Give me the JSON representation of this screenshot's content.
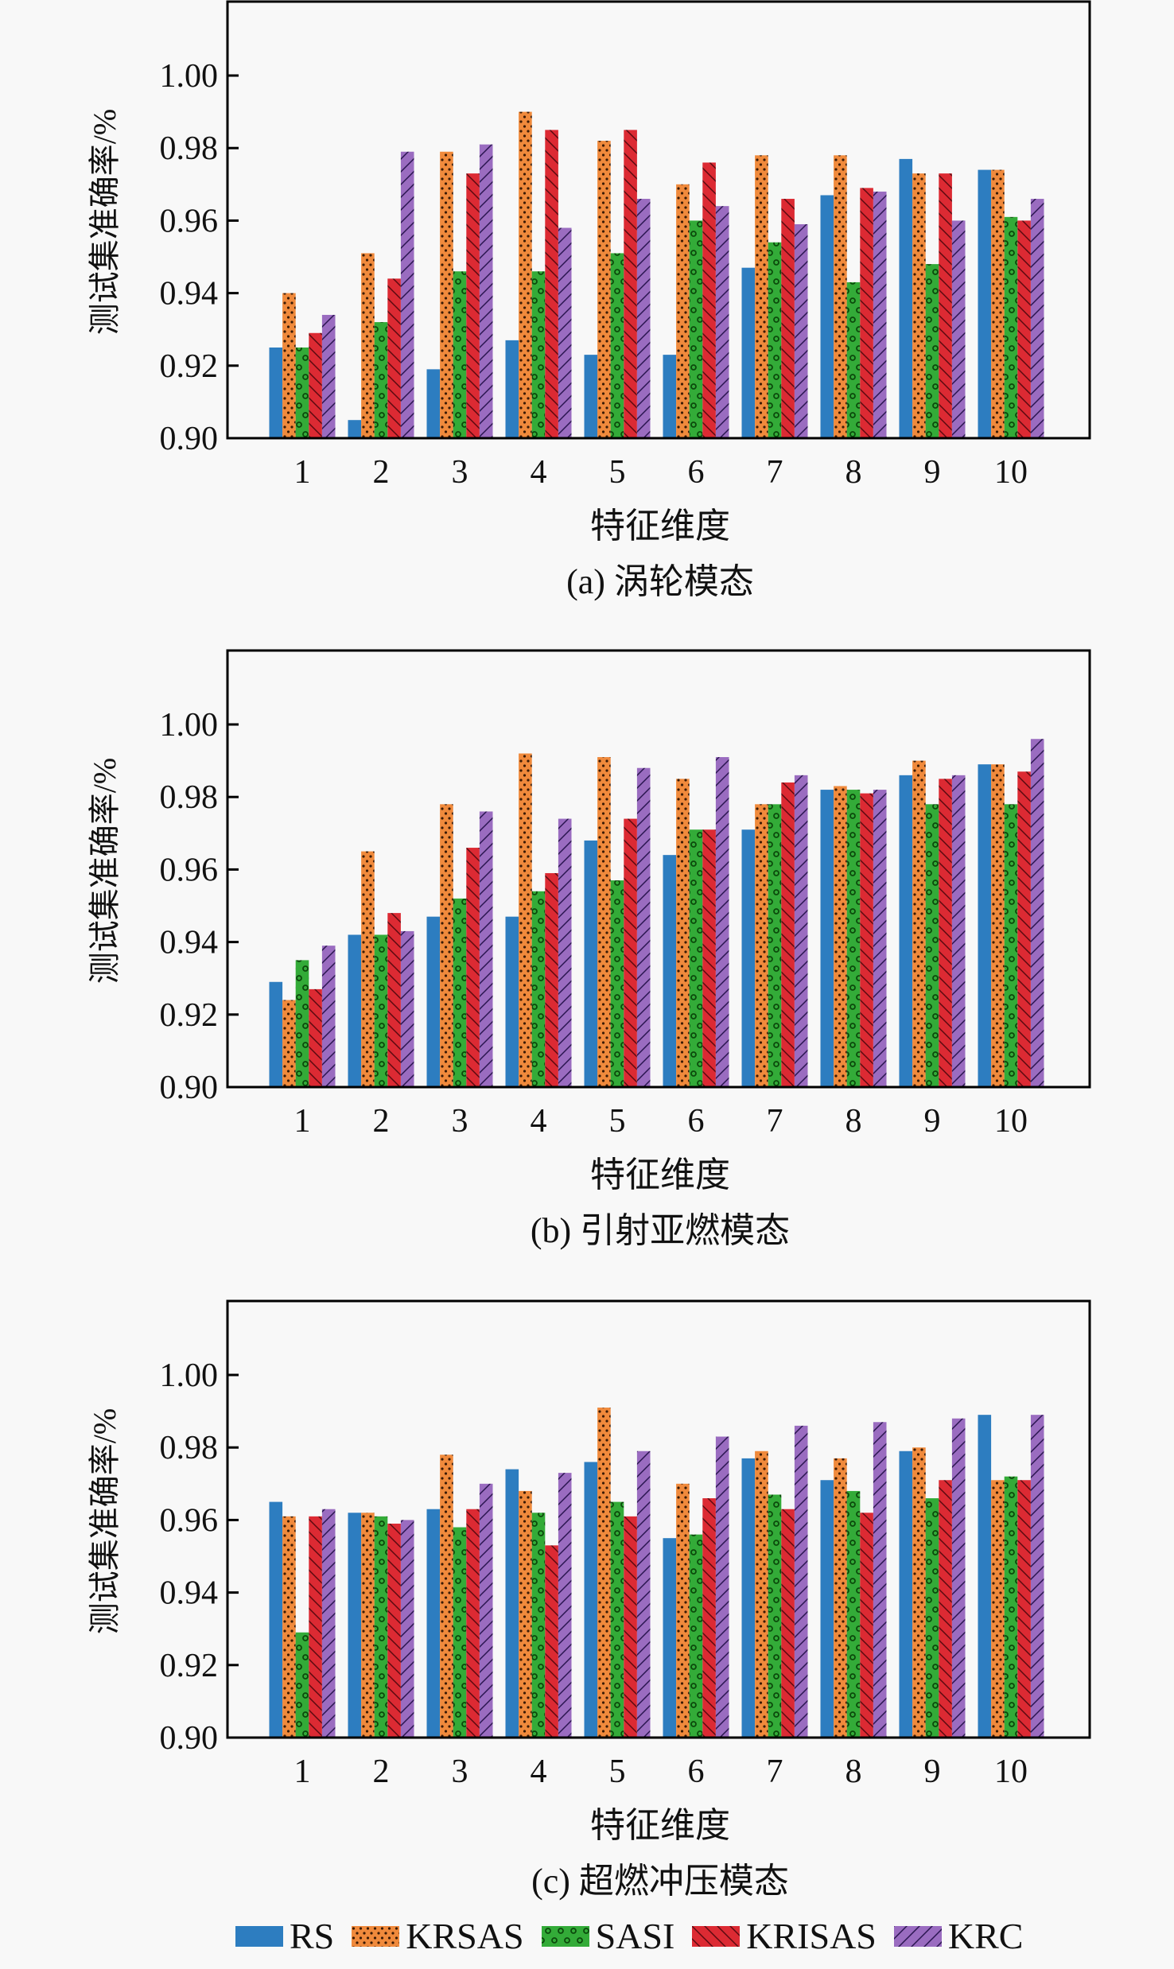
{
  "legend": [
    {
      "name": "RS",
      "color": "#2d7dc0",
      "pattern": "solid"
    },
    {
      "name": "KRSAS",
      "color": "#f08a3c",
      "pattern": "dots"
    },
    {
      "name": "SASI",
      "color": "#33ab38",
      "pattern": "rings"
    },
    {
      "name": "KRISAS",
      "color": "#dc2a33",
      "pattern": "backslash"
    },
    {
      "name": "KRC",
      "color": "#9a6cc0",
      "pattern": "slash"
    }
  ],
  "chart_data": [
    {
      "type": "bar",
      "title": "(a) 涡轮模态",
      "xlabel": "特征维度",
      "ylabel": "测试集准确率/%",
      "categories": [
        "1",
        "2",
        "3",
        "4",
        "5",
        "6",
        "7",
        "8",
        "9",
        "10"
      ],
      "ylim": [
        0.9,
        1.02
      ],
      "yticks": [
        "0.90",
        "0.92",
        "0.94",
        "0.96",
        "0.98",
        "1.00"
      ],
      "grid": false,
      "legend_position": "bottom",
      "series": [
        {
          "name": "RS",
          "values": [
            0.925,
            0.905,
            0.919,
            0.927,
            0.923,
            0.923,
            0.947,
            0.967,
            0.977,
            0.974
          ]
        },
        {
          "name": "KRSAS",
          "values": [
            0.94,
            0.951,
            0.979,
            0.99,
            0.982,
            0.97,
            0.978,
            0.978,
            0.973,
            0.974
          ]
        },
        {
          "name": "SASI",
          "values": [
            0.925,
            0.932,
            0.946,
            0.946,
            0.951,
            0.96,
            0.954,
            0.943,
            0.948,
            0.961
          ]
        },
        {
          "name": "KRISAS",
          "values": [
            0.929,
            0.944,
            0.973,
            0.985,
            0.985,
            0.976,
            0.966,
            0.969,
            0.973,
            0.96
          ]
        },
        {
          "name": "KRC",
          "values": [
            0.934,
            0.979,
            0.981,
            0.958,
            0.966,
            0.964,
            0.959,
            0.968,
            0.96,
            0.966
          ]
        }
      ]
    },
    {
      "type": "bar",
      "title": "(b) 引射亚燃模态",
      "xlabel": "特征维度",
      "ylabel": "测试集准确率/%",
      "categories": [
        "1",
        "2",
        "3",
        "4",
        "5",
        "6",
        "7",
        "8",
        "9",
        "10"
      ],
      "ylim": [
        0.9,
        1.02
      ],
      "yticks": [
        "0.90",
        "0.92",
        "0.94",
        "0.96",
        "0.98",
        "1.00"
      ],
      "grid": false,
      "legend_position": "bottom",
      "series": [
        {
          "name": "RS",
          "values": [
            0.929,
            0.942,
            0.947,
            0.947,
            0.968,
            0.964,
            0.971,
            0.982,
            0.986,
            0.989
          ]
        },
        {
          "name": "KRSAS",
          "values": [
            0.924,
            0.965,
            0.978,
            0.992,
            0.991,
            0.985,
            0.978,
            0.983,
            0.99,
            0.989
          ]
        },
        {
          "name": "SASI",
          "values": [
            0.935,
            0.942,
            0.952,
            0.954,
            0.957,
            0.971,
            0.978,
            0.982,
            0.978,
            0.978
          ]
        },
        {
          "name": "KRISAS",
          "values": [
            0.927,
            0.948,
            0.966,
            0.959,
            0.974,
            0.971,
            0.984,
            0.981,
            0.985,
            0.987
          ]
        },
        {
          "name": "KRC",
          "values": [
            0.939,
            0.943,
            0.976,
            0.974,
            0.988,
            0.991,
            0.986,
            0.982,
            0.986,
            0.996
          ]
        }
      ]
    },
    {
      "type": "bar",
      "title": "(c) 超燃冲压模态",
      "xlabel": "特征维度",
      "ylabel": "测试集准确率/%",
      "categories": [
        "1",
        "2",
        "3",
        "4",
        "5",
        "6",
        "7",
        "8",
        "9",
        "10"
      ],
      "ylim": [
        0.9,
        1.02
      ],
      "yticks": [
        "0.90",
        "0.92",
        "0.94",
        "0.96",
        "0.98",
        "1.00"
      ],
      "grid": false,
      "legend_position": "bottom",
      "series": [
        {
          "name": "RS",
          "values": [
            0.965,
            0.962,
            0.963,
            0.974,
            0.976,
            0.955,
            0.977,
            0.971,
            0.979,
            0.989
          ]
        },
        {
          "name": "KRSAS",
          "values": [
            0.961,
            0.962,
            0.978,
            0.968,
            0.991,
            0.97,
            0.979,
            0.977,
            0.98,
            0.971
          ]
        },
        {
          "name": "SASI",
          "values": [
            0.929,
            0.961,
            0.958,
            0.962,
            0.965,
            0.956,
            0.967,
            0.968,
            0.966,
            0.972
          ]
        },
        {
          "name": "KRISAS",
          "values": [
            0.961,
            0.959,
            0.963,
            0.953,
            0.961,
            0.966,
            0.963,
            0.962,
            0.971,
            0.971
          ]
        },
        {
          "name": "KRC",
          "values": [
            0.963,
            0.96,
            0.97,
            0.973,
            0.979,
            0.983,
            0.986,
            0.987,
            0.988,
            0.989
          ]
        }
      ]
    }
  ]
}
